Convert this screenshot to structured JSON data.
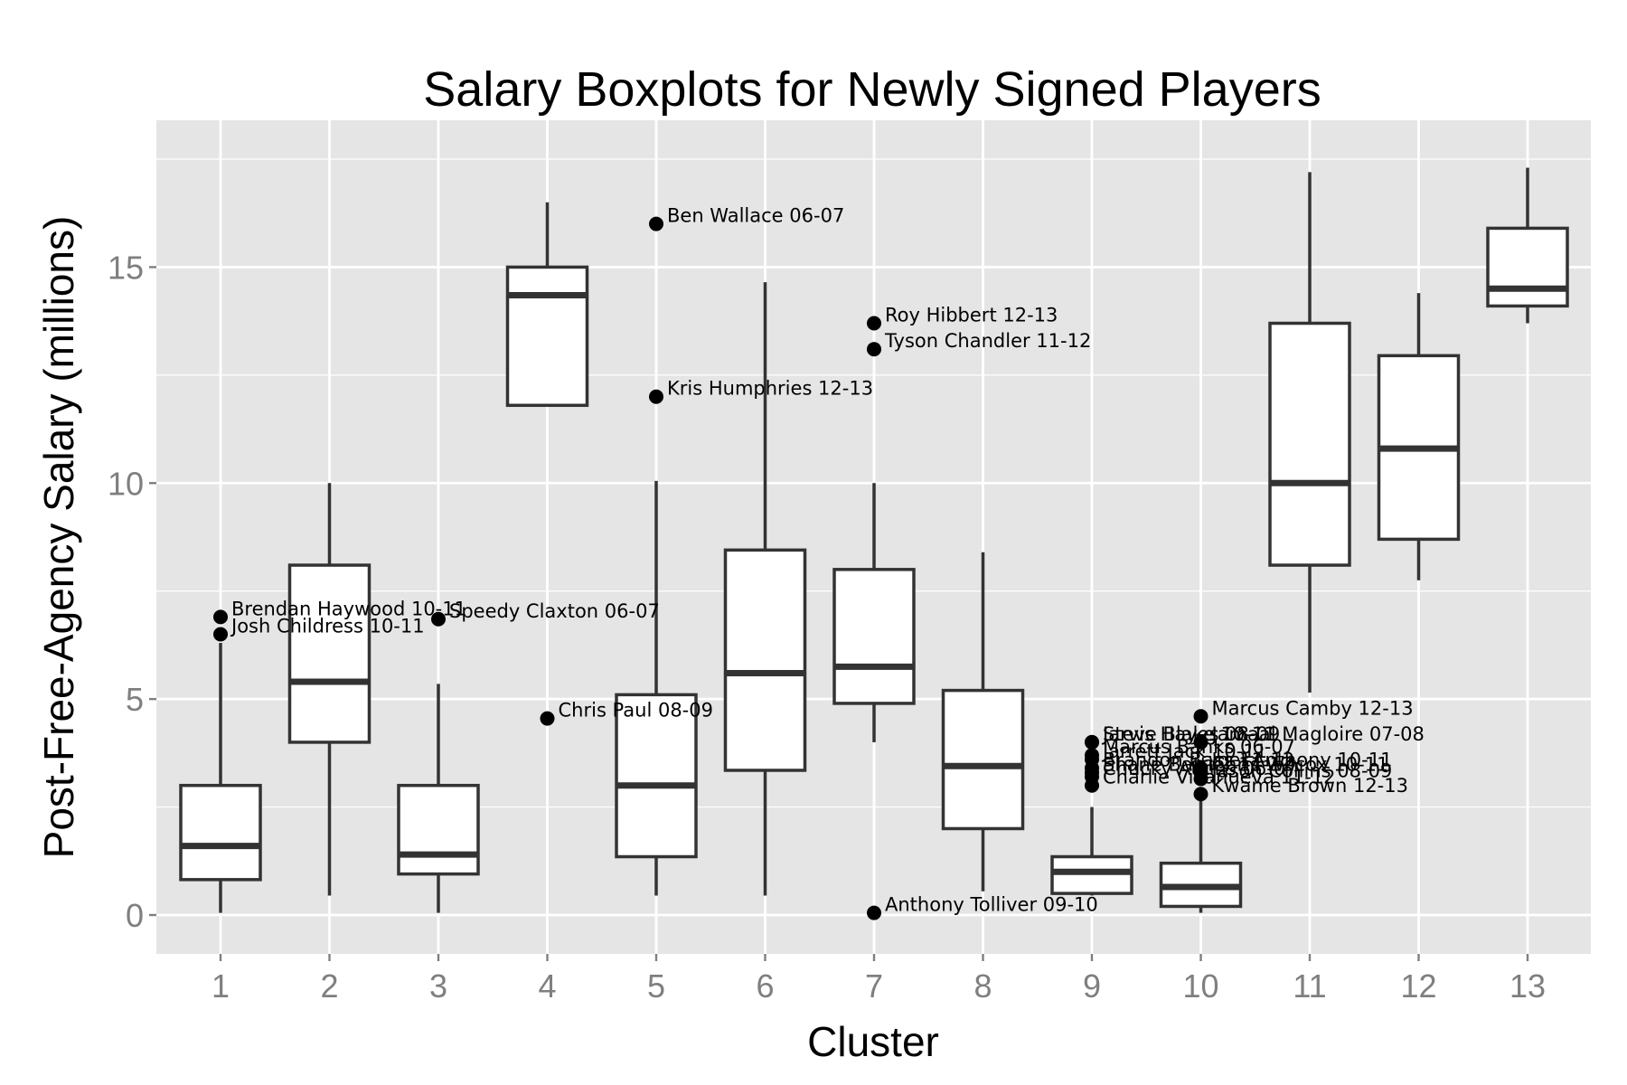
{
  "chart_data": {
    "type": "boxplot",
    "title": "Salary Boxplots for Newly Signed Players",
    "xlabel": "Cluster",
    "ylabel": "Post-Free-Agency Salary (millions)",
    "ylim": [
      -0.9,
      18.4
    ],
    "yticks": [
      0,
      5,
      10,
      15
    ],
    "ytick_labels": [
      "0",
      "5",
      "10",
      "15"
    ],
    "categories": [
      "1",
      "2",
      "3",
      "4",
      "5",
      "6",
      "7",
      "8",
      "9",
      "10",
      "11",
      "12",
      "13"
    ],
    "grid": true,
    "background": "#e5e5e5",
    "box_fill": "#ffffff",
    "box_stroke": "#333333",
    "grid_color": "#ffffff",
    "boxes": [
      {
        "cluster": "1",
        "whisker_low": 0.05,
        "q1": 0.82,
        "median": 1.6,
        "q3": 3.0,
        "whisker_high": 6.3
      },
      {
        "cluster": "2",
        "whisker_low": 0.45,
        "q1": 4.0,
        "median": 5.4,
        "q3": 8.1,
        "whisker_high": 10.0
      },
      {
        "cluster": "3",
        "whisker_low": 0.05,
        "q1": 0.95,
        "median": 1.4,
        "q3": 3.0,
        "whisker_high": 5.35
      },
      {
        "cluster": "4",
        "whisker_low": 11.8,
        "q1": 11.8,
        "median": 14.35,
        "q3": 15.0,
        "whisker_high": 16.5
      },
      {
        "cluster": "5",
        "whisker_low": 0.45,
        "q1": 1.35,
        "median": 3.0,
        "q3": 5.1,
        "whisker_high": 10.05
      },
      {
        "cluster": "6",
        "whisker_low": 0.45,
        "q1": 3.35,
        "median": 5.6,
        "q3": 8.45,
        "whisker_high": 14.65
      },
      {
        "cluster": "7",
        "whisker_low": 4.0,
        "q1": 4.9,
        "median": 5.75,
        "q3": 8.0,
        "whisker_high": 10.0
      },
      {
        "cluster": "8",
        "whisker_low": 0.55,
        "q1": 2.0,
        "median": 3.45,
        "q3": 5.2,
        "whisker_high": 8.4
      },
      {
        "cluster": "9",
        "whisker_low": 0.45,
        "q1": 0.5,
        "median": 1.0,
        "q3": 1.35,
        "whisker_high": 2.5
      },
      {
        "cluster": "10",
        "whisker_low": 0.05,
        "q1": 0.2,
        "median": 0.65,
        "q3": 1.2,
        "whisker_high": 2.7
      },
      {
        "cluster": "11",
        "whisker_low": 5.15,
        "q1": 8.1,
        "median": 10.0,
        "q3": 13.7,
        "whisker_high": 17.2
      },
      {
        "cluster": "12",
        "whisker_low": 7.75,
        "q1": 8.7,
        "median": 10.8,
        "q3": 12.95,
        "whisker_high": 14.4
      },
      {
        "cluster": "13",
        "whisker_low": 13.7,
        "q1": 14.1,
        "median": 14.5,
        "q3": 15.9,
        "whisker_high": 17.3
      }
    ],
    "outliers": [
      {
        "cluster": "1",
        "y": 6.9,
        "label": "Brendan Haywood 10-11"
      },
      {
        "cluster": "1",
        "y": 6.5,
        "label": "Josh Childress 10-11"
      },
      {
        "cluster": "3",
        "y": 6.85,
        "label": "Speedy Claxton 06-07"
      },
      {
        "cluster": "4",
        "y": 4.55,
        "label": "Chris Paul 08-09"
      },
      {
        "cluster": "5",
        "y": 16.0,
        "label": "Ben Wallace 06-07"
      },
      {
        "cluster": "5",
        "y": 12.0,
        "label": "Kris Humphries 12-13"
      },
      {
        "cluster": "7",
        "y": 13.7,
        "label": "Roy Hibbert 12-13"
      },
      {
        "cluster": "7",
        "y": 13.1,
        "label": "Tyson Chandler 11-12"
      },
      {
        "cluster": "7",
        "y": 0.05,
        "label": "Anthony Tolliver 09-10"
      },
      {
        "cluster": "9",
        "y": 4.0,
        "label": "Steve Blake 10-11"
      },
      {
        "cluster": "9",
        "y": 4.0,
        "label": "Jarvis Hayes 08-09"
      },
      {
        "cluster": "9",
        "y": 3.7,
        "label": "Marcus Banks 06-07"
      },
      {
        "cluster": "9",
        "y": 3.6,
        "label": "Jarrett Jack 10-11"
      },
      {
        "cluster": "9",
        "y": 3.4,
        "label": "Brandon Bass 11-12"
      },
      {
        "cluster": "9",
        "y": 3.3,
        "label": "Shane Battier 11-12"
      },
      {
        "cluster": "9",
        "y": 3.2,
        "label": "Chucky Atkins 06-07"
      },
      {
        "cluster": "9",
        "y": 3.0,
        "label": "Charlie Villanueva 11-12"
      },
      {
        "cluster": "10",
        "y": 4.6,
        "label": "Marcus Camby 12-13"
      },
      {
        "cluster": "10",
        "y": 4.0,
        "label": "Jamaal Magloire 07-08"
      },
      {
        "cluster": "10",
        "y": 3.4,
        "label": "Joel Anthony 10-11"
      },
      {
        "cluster": "10",
        "y": 3.3,
        "label": "Chris Wilcox 10-11"
      },
      {
        "cluster": "10",
        "y": 3.15,
        "label": "Jason Collins 08-09"
      },
      {
        "cluster": "10",
        "y": 2.8,
        "label": "Kwame Brown 12-13"
      }
    ]
  }
}
